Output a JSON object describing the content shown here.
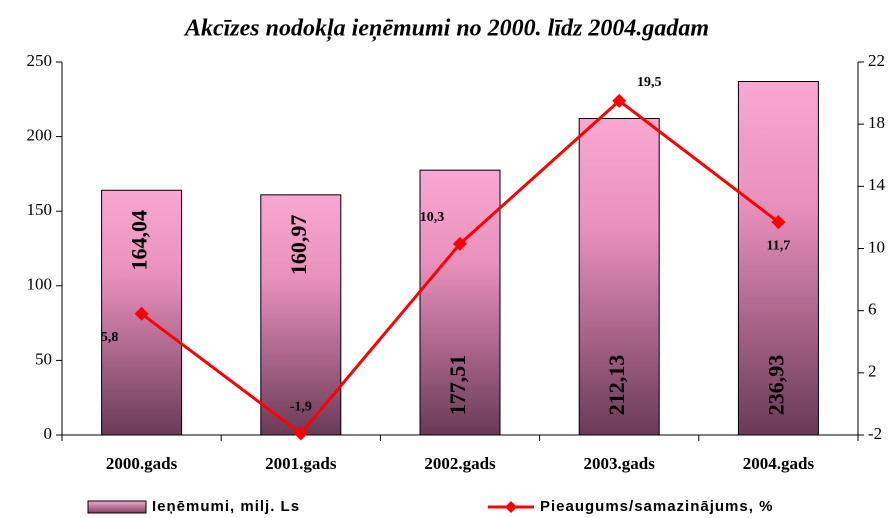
{
  "chart_data": {
    "type": "bar",
    "title": "Akcīzes nodokļa ieņēmumi no 2000. līdz 2004.gadam",
    "categories": [
      "2000.gads",
      "2001.gads",
      "2002.gads",
      "2003.gads",
      "2004.gads"
    ],
    "series": [
      {
        "name": "Ieņēmumi, milj. Ls",
        "type": "bar",
        "color": "#f0a0c8",
        "values": [
          164.04,
          160.97,
          177.51,
          212.13,
          236.93
        ],
        "value_labels": [
          "164,04",
          "160,97",
          "177,51",
          "212,13",
          "236,93"
        ]
      },
      {
        "name": "Pieaugums/samazinājums, %",
        "type": "line",
        "axis": "y2",
        "color": "#ff0000",
        "values": [
          5.8,
          -1.9,
          10.3,
          19.5,
          11.7
        ],
        "value_labels": [
          "5,8",
          "-1,9",
          "10,3",
          "19,5",
          "11,7"
        ]
      }
    ],
    "ylim": [
      0,
      250
    ],
    "yticks": [
      0,
      50,
      100,
      150,
      200,
      250
    ],
    "y2lim": [
      -2,
      22
    ],
    "y2ticks": [
      -2,
      2,
      6,
      10,
      14,
      18,
      22
    ]
  }
}
